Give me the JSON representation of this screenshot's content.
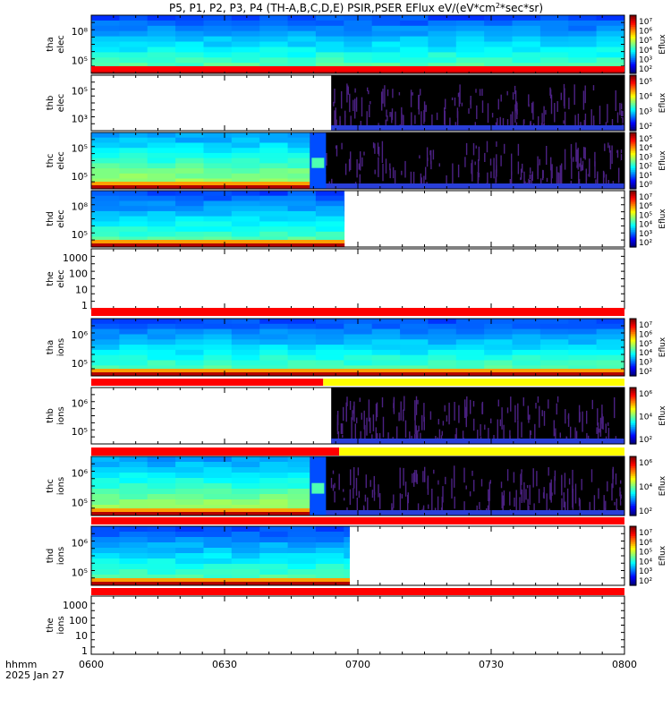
{
  "title": "P5, P1, P2, P3, P4 (TH-A,B,C,D,E) PSIR,PSER EFlux eV/(eV*cm",
  "title_sup": "2",
  "title_tail": "*sec*sr)",
  "footer": {
    "line1": "hhmm",
    "line2": "2025 Jan 27"
  },
  "chart_data": {
    "type": "heatmap",
    "x": {
      "ticks": [
        "0600",
        "0630",
        "0700",
        "0730",
        "0800"
      ],
      "range_hours": [
        6.0,
        8.0
      ]
    },
    "colorbar_title": "Eflux",
    "panels": [
      {
        "probe": "tha",
        "species": "elec",
        "ylabels": [
          "10⁸",
          "10⁵"
        ],
        "cbar": [
          "10⁷",
          "10⁶",
          "10⁵",
          "10⁴",
          "10³",
          "10²"
        ],
        "coverage": [
          6.0,
          8.0
        ],
        "style": "dense",
        "flag": "full-red"
      },
      {
        "probe": "thb",
        "species": "elec",
        "ylabels": [
          "10⁵",
          "10³"
        ],
        "cbar": [
          "10⁵",
          "10⁴",
          "10³",
          "10²"
        ],
        "coverage": [
          6.9,
          8.0
        ],
        "style": "sparse",
        "flag": "none"
      },
      {
        "probe": "thc",
        "species": "elec",
        "ylabels": [
          "10⁵",
          "10⁵"
        ],
        "cbar": [
          "10⁵",
          "10⁴",
          "10³",
          "10²",
          "10¹",
          "10⁰"
        ],
        "coverage": [
          6.0,
          8.0
        ],
        "split": 6.82,
        "style": "dense-then-sparse",
        "flag": "none"
      },
      {
        "probe": "thd",
        "species": "elec",
        "ylabels": [
          "10⁸",
          "10⁵"
        ],
        "cbar": [
          "10⁷",
          "10⁶",
          "10⁵",
          "10⁴",
          "10³",
          "10²"
        ],
        "coverage": [
          6.0,
          6.95
        ],
        "style": "dense",
        "flag": "partial-red"
      },
      {
        "probe": "the",
        "species": "elec",
        "ylabels": [
          "1000",
          "100",
          "10",
          "1"
        ],
        "cbar": [],
        "coverage": [],
        "style": "empty",
        "flag": "full-red"
      },
      {
        "probe": "tha",
        "species": "ions",
        "ylabels": [
          "10⁶",
          "10⁵"
        ],
        "cbar": [
          "10⁷",
          "10⁶",
          "10⁵",
          "10⁴",
          "10³",
          "10²"
        ],
        "coverage": [
          6.0,
          8.0
        ],
        "style": "dense",
        "flag": "red-then-yellow"
      },
      {
        "probe": "thb",
        "species": "ions",
        "ylabels": [
          "10⁶",
          "10⁵"
        ],
        "cbar": [
          "10⁶",
          "10⁴",
          "10²"
        ],
        "coverage": [
          6.9,
          8.0
        ],
        "style": "sparse",
        "flag": "red-then-yellow"
      },
      {
        "probe": "thc",
        "species": "ions",
        "ylabels": [
          "10⁶",
          "10⁵"
        ],
        "cbar": [
          "10⁶",
          "10⁴",
          "10²"
        ],
        "coverage": [
          6.0,
          8.0
        ],
        "split": 6.82,
        "style": "dense-then-sparse",
        "flag": "full-red"
      },
      {
        "probe": "thd",
        "species": "ions",
        "ylabels": [
          "10⁶",
          "10⁵"
        ],
        "cbar": [
          "10⁷",
          "10⁶",
          "10⁵",
          "10⁴",
          "10³",
          "10²"
        ],
        "coverage": [
          6.0,
          6.97
        ],
        "style": "dense",
        "flag": "full-red"
      },
      {
        "probe": "the",
        "species": "ions",
        "ylabels": [
          "1000",
          "100",
          "10",
          "1"
        ],
        "cbar": [],
        "coverage": [],
        "style": "empty",
        "flag": "none"
      }
    ]
  }
}
